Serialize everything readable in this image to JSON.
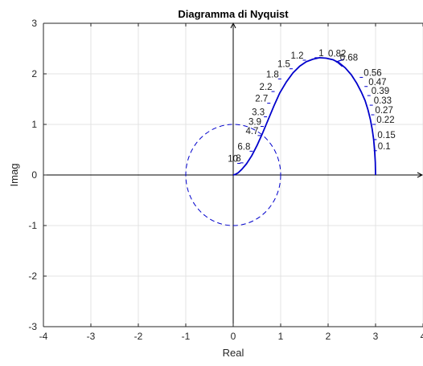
{
  "chart_data": {
    "type": "line",
    "title": "Diagramma di Nyquist",
    "xlabel": "Real",
    "ylabel": "Imag",
    "xlim": [
      -4,
      4
    ],
    "ylim": [
      -3,
      3
    ],
    "xticks": [
      -4,
      -3,
      -2,
      -1,
      0,
      1,
      2,
      3,
      4
    ],
    "yticks": [
      -3,
      -2,
      -1,
      0,
      1,
      2,
      3
    ],
    "xtick_labels": [
      "-4",
      "-3",
      "-2",
      "-1",
      "0",
      "1",
      "2",
      "3",
      "4"
    ],
    "ytick_labels": [
      "-3",
      "-2",
      "-1",
      "0",
      "1",
      "2",
      "3"
    ],
    "grid": true,
    "axes_lines": true,
    "series": [
      {
        "style": "solid",
        "color": "#0000cc",
        "x": [
          3.0,
          2.995,
          2.98,
          2.96,
          2.93,
          2.89,
          2.84,
          2.78,
          2.7,
          2.6,
          2.49,
          2.36,
          2.23,
          2.1,
          1.96,
          1.82,
          1.68,
          1.54,
          1.4,
          1.26,
          1.12,
          0.98,
          0.86,
          0.74,
          0.62,
          0.5,
          0.39,
          0.28,
          0.18,
          0.1,
          0.04,
          0.0
        ],
        "y": [
          0.0,
          0.25,
          0.48,
          0.7,
          0.9,
          1.1,
          1.29,
          1.47,
          1.64,
          1.82,
          1.98,
          2.12,
          2.22,
          2.28,
          2.31,
          2.32,
          2.29,
          2.24,
          2.15,
          2.02,
          1.84,
          1.62,
          1.37,
          1.1,
          0.83,
          0.58,
          0.38,
          0.22,
          0.11,
          0.04,
          0.01,
          0.0
        ]
      },
      {
        "style": "dashed",
        "color": "#0000cc",
        "shape": "circle",
        "center": [
          0,
          0
        ],
        "radius": 1
      }
    ],
    "frequency_labels": [
      {
        "text": "0.1",
        "x": 2.995,
        "y": 0.48
      },
      {
        "text": "0.15",
        "x": 2.99,
        "y": 0.7
      },
      {
        "text": "0.22",
        "x": 2.97,
        "y": 1.0
      },
      {
        "text": "0.27",
        "x": 2.94,
        "y": 1.19
      },
      {
        "text": "0.33",
        "x": 2.91,
        "y": 1.38
      },
      {
        "text": "0.39",
        "x": 2.86,
        "y": 1.57
      },
      {
        "text": "0.47",
        "x": 2.8,
        "y": 1.75
      },
      {
        "text": "0.56",
        "x": 2.7,
        "y": 1.93
      },
      {
        "text": "0.68",
        "x": 2.2,
        "y": 2.23
      },
      {
        "text": "0.82",
        "x": 1.95,
        "y": 2.31
      },
      {
        "text": "1",
        "x": 1.75,
        "y": 2.32
      },
      {
        "text": "1.2",
        "x": 1.5,
        "y": 2.27
      },
      {
        "text": "1.5",
        "x": 1.22,
        "y": 2.1
      },
      {
        "text": "1.8",
        "x": 0.98,
        "y": 1.9
      },
      {
        "text": "2.2",
        "x": 0.84,
        "y": 1.65
      },
      {
        "text": "2.7",
        "x": 0.75,
        "y": 1.42
      },
      {
        "text": "3.3",
        "x": 0.68,
        "y": 1.15
      },
      {
        "text": "3.9",
        "x": 0.61,
        "y": 0.96
      },
      {
        "text": "4.7",
        "x": 0.55,
        "y": 0.78
      },
      {
        "text": "6.8",
        "x": 0.38,
        "y": 0.47
      },
      {
        "text": "8",
        "x": 0.18,
        "y": 0.24
      },
      {
        "text": "10",
        "x": 0.12,
        "y": 0.23
      }
    ]
  }
}
